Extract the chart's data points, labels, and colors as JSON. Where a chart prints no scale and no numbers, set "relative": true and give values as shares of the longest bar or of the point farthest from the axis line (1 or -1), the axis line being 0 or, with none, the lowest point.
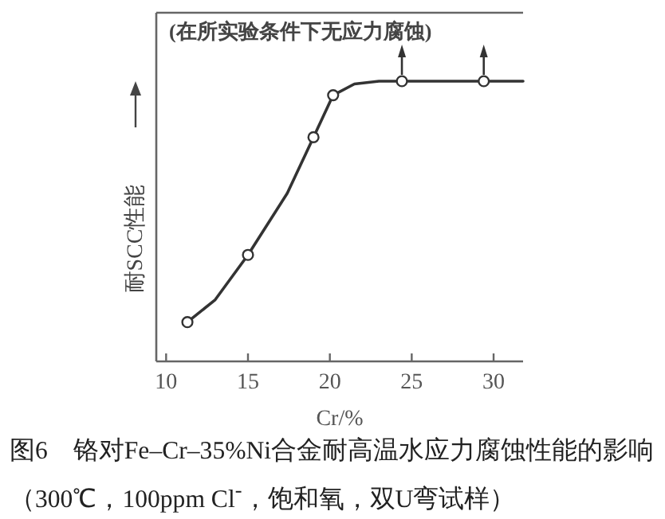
{
  "chart_data": {
    "type": "line",
    "title": "图6　铬对Fe–Cr–35%Ni合金耐高温水应力腐蚀性能的影响（300℃，100ppm Cl$^{-}$，饱和氧，双U弯试样）",
    "xlabel": "Cr/%",
    "ylabel": "耐SCC性能",
    "annotations": [
      "(在所实验条件下无应力腐蚀)"
    ],
    "relative": true,
    "xlim": [
      9.4,
      31.8
    ],
    "xticks": [
      10,
      15,
      20,
      25,
      30
    ],
    "series": [
      {
        "color": "#333333",
        "marker": "none",
        "x": [
          11.3,
          13,
          15,
          17.4,
          19,
          20.2,
          21.5,
          23,
          24.4,
          29.4,
          31.8
        ],
        "values": [
          0.14,
          0.22,
          0.38,
          0.6,
          0.8,
          0.95,
          0.99,
          1,
          1,
          1,
          1
        ]
      },
      {
        "type": "scatter",
        "color": "#333333",
        "marker": "circle",
        "x": [
          11.3,
          15,
          19,
          20.2,
          24.4,
          29.4
        ],
        "values": [
          0.14,
          0.38,
          0.8,
          0.95,
          1,
          1
        ]
      }
    ]
  }
}
